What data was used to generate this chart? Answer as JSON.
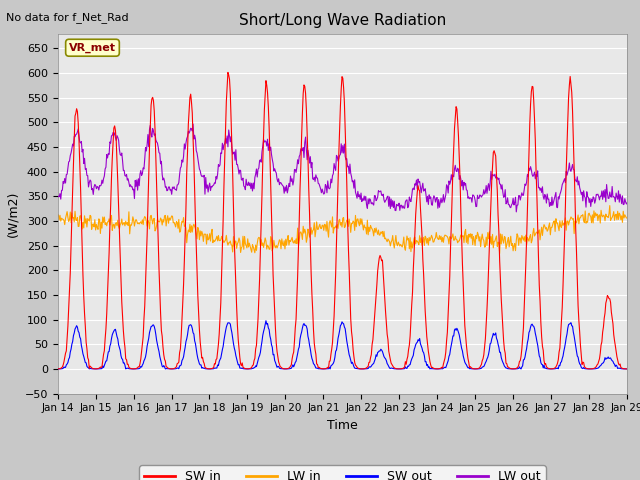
{
  "title": "Short/Long Wave Radiation",
  "xlabel": "Time",
  "ylabel": "(W/m2)",
  "top_left_text": "No data for f_Net_Rad",
  "station_label": "VR_met",
  "ylim": [
    -50,
    680
  ],
  "yticks": [
    -50,
    0,
    50,
    100,
    150,
    200,
    250,
    300,
    350,
    400,
    450,
    500,
    550,
    600,
    650
  ],
  "xtick_labels": [
    "Jan 14",
    "Jan 15",
    "Jan 16",
    "Jan 17",
    "Jan 18",
    "Jan 19",
    "Jan 20",
    "Jan 21",
    "Jan 22",
    "Jan 23",
    "Jan 24",
    "Jan 25",
    "Jan 26",
    "Jan 27",
    "Jan 28",
    "Jan 29"
  ],
  "colors": {
    "SW_in": "#ff0000",
    "LW_in": "#ffa500",
    "SW_out": "#0000ff",
    "LW_out": "#9900cc"
  },
  "legend_labels": [
    "SW in",
    "LW in",
    "SW out",
    "LW out"
  ],
  "fig_bg_color": "#c8c8c8",
  "plot_bg_color": "#e8e8e8",
  "grid_color": "#ffffff"
}
